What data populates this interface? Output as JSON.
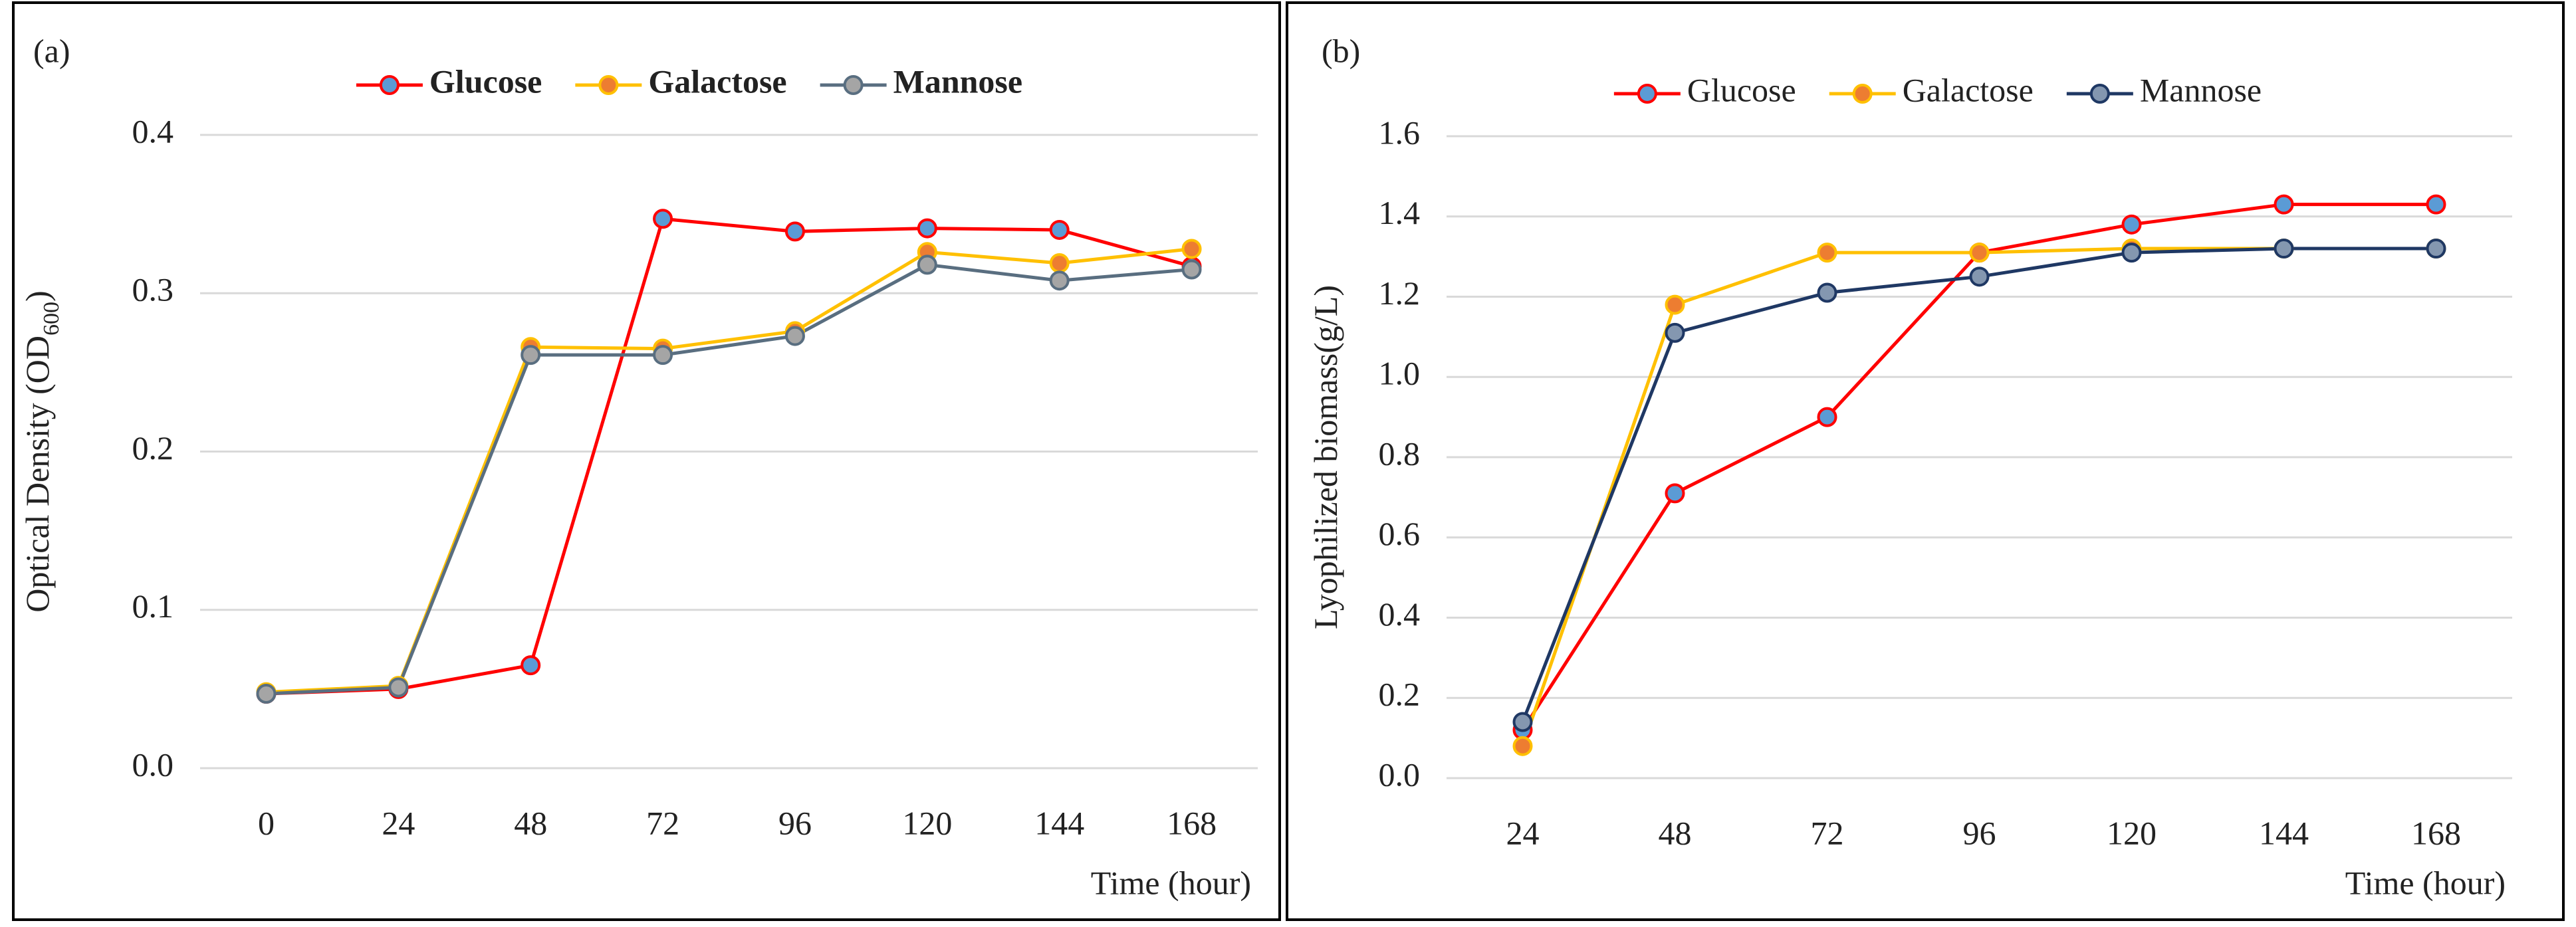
{
  "chart_data": [
    {
      "type": "line",
      "panel_label": "(a)",
      "xlabel": "Time (hour)",
      "ylabel_parts": [
        "Optical Density (OD",
        "600",
        ")"
      ],
      "categories": [
        "0",
        "24",
        "48",
        "72",
        "96",
        "120",
        "144",
        "168"
      ],
      "ylim": [
        0,
        0.4
      ],
      "yticks": [
        {
          "value": 0,
          "label": "0.0"
        },
        0.1,
        0.2,
        0.3,
        0.4
      ],
      "grid": true,
      "legend": "top",
      "series": [
        {
          "name": "Glucose",
          "color": "#ff0000",
          "marker_color": "#5b9bd5",
          "values": [
            0.047,
            0.05,
            0.065,
            0.347,
            0.339,
            0.341,
            0.34,
            0.317
          ]
        },
        {
          "name": "Galactose",
          "color": "#ffc000",
          "marker_color": "#ed7d31",
          "values": [
            0.048,
            0.052,
            0.266,
            0.265,
            0.276,
            0.326,
            0.319,
            0.328
          ]
        },
        {
          "name": "Mannose",
          "color": "#596e80",
          "marker_color": "#a5a5a5",
          "values": [
            0.047,
            0.051,
            0.261,
            0.261,
            0.273,
            0.318,
            0.308,
            0.315
          ]
        }
      ]
    },
    {
      "type": "line",
      "panel_label": "(b)",
      "xlabel": "Time (hour)",
      "ylabel_parts": [
        "Lyophilized biomass(g/L)"
      ],
      "categories": [
        "24",
        "48",
        "72",
        "96",
        "120",
        "144",
        "168"
      ],
      "ylim": [
        0,
        1.6
      ],
      "yticks": [
        {
          "value": 0,
          "label": "0.0"
        },
        0.2,
        0.4,
        0.6,
        0.8,
        {
          "value": 1,
          "label": "1.0"
        },
        1.2,
        1.4,
        1.6
      ],
      "grid": true,
      "legend": "top",
      "series": [
        {
          "name": "Glucose",
          "color": "#ff0000",
          "marker_color": "#5b9bd5",
          "values": [
            0.12,
            0.71,
            0.9,
            1.31,
            1.38,
            1.43,
            1.43
          ]
        },
        {
          "name": "Galactose",
          "color": "#ffc000",
          "marker_color": "#ed7d31",
          "values": [
            0.08,
            1.18,
            1.31,
            1.31,
            1.32,
            1.32,
            1.32
          ]
        },
        {
          "name": "Mannose",
          "color": "#1f3864",
          "marker_color": "#8497b0",
          "values": [
            0.14,
            1.11,
            1.21,
            1.25,
            1.31,
            1.32,
            1.32
          ]
        }
      ]
    }
  ]
}
